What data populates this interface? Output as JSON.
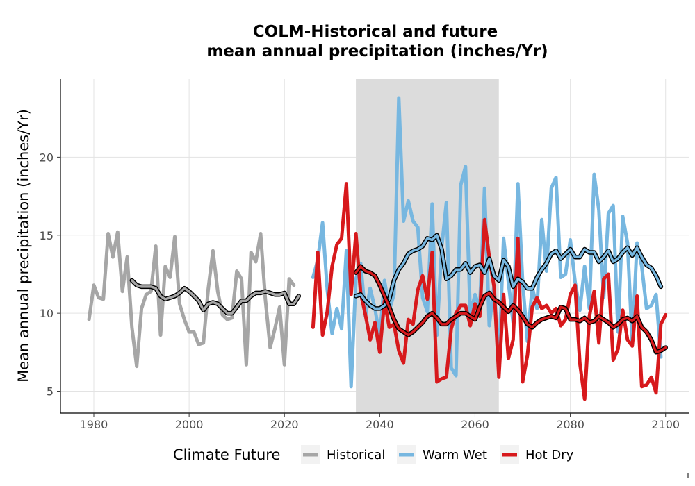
{
  "chart_data": {
    "type": "line",
    "title_line1": "COLM-Historical and future",
    "title_line2": "mean annual precipitation (inches/Yr)",
    "ylabel": "Mean annual precipitation (inches/Yr)",
    "xlabel": "",
    "xlim": [
      1973,
      2105
    ],
    "ylim": [
      3.6,
      25.0
    ],
    "x_ticks": [
      1980,
      2000,
      2020,
      2040,
      2060,
      2080,
      2100
    ],
    "y_ticks": [
      5,
      10,
      15,
      20
    ],
    "grid": true,
    "shaded_period": {
      "x_start": 2035,
      "x_end": 2065,
      "color": "#dcdcdc"
    },
    "legend": {
      "title": "Climate Future",
      "position": "bottom",
      "entries": [
        {
          "label": "Historical",
          "color": "#a6a6a6"
        },
        {
          "label": "Warm Wet",
          "color": "#77b7e0"
        },
        {
          "label": "Hot Dry",
          "color": "#d7191c"
        }
      ]
    },
    "series": [
      {
        "name": "Historical",
        "color": "#a6a6a6",
        "x_start": 1979,
        "values": [
          9.6,
          11.8,
          11.0,
          10.9,
          15.1,
          13.6,
          15.2,
          11.4,
          13.6,
          9.1,
          6.6,
          10.3,
          11.2,
          11.4,
          14.3,
          8.6,
          13.0,
          12.3,
          14.9,
          10.6,
          9.6,
          8.8,
          8.8,
          8.0,
          8.1,
          11.5,
          14.0,
          11.4,
          9.9,
          9.6,
          9.7,
          12.7,
          12.2,
          6.7,
          13.9,
          13.3,
          15.1,
          10.9,
          7.8,
          9.0,
          10.4,
          6.7,
          12.2,
          11.8
        ]
      },
      {
        "name": "Historical smoothed",
        "color": "#a6a6a6",
        "smooth": true,
        "x_start": 1988,
        "values": [
          12.1,
          11.8,
          11.7,
          11.7,
          11.7,
          11.6,
          11.1,
          10.9,
          11.0,
          11.1,
          11.3,
          11.6,
          11.4,
          11.1,
          10.8,
          10.2,
          10.6,
          10.7,
          10.6,
          10.3,
          10.0,
          10.0,
          10.4,
          10.8,
          10.8,
          11.1,
          11.3,
          11.3,
          11.4,
          11.3,
          11.2,
          11.2,
          11.3,
          10.6,
          10.6,
          11.1
        ]
      },
      {
        "name": "Warm Wet",
        "color": "#77b7e0",
        "x_start": 2026,
        "values": [
          12.3,
          13.4,
          15.8,
          11.5,
          8.7,
          10.3,
          9.0,
          14.0,
          5.3,
          12.2,
          13.2,
          9.8,
          11.6,
          10.3,
          8.5,
          12.1,
          10.2,
          11.2,
          23.8,
          15.9,
          17.2,
          15.9,
          15.5,
          11.0,
          10.1,
          17.0,
          8.6,
          14.2,
          17.1,
          6.5,
          6.0,
          18.2,
          19.4,
          9.9,
          11.2,
          10.3,
          18.0,
          9.2,
          11.8,
          6.7,
          14.8,
          12.0,
          9.4,
          18.3,
          12.0,
          8.2,
          11.7,
          10.3,
          16.0,
          12.7,
          18.0,
          18.7,
          12.3,
          12.5,
          14.7,
          12.0,
          10.2,
          13.0,
          10.3,
          18.9,
          16.6,
          11.0,
          16.4,
          16.9,
          8.8,
          16.2,
          14.5,
          8.1,
          14.5,
          13.0,
          10.3,
          10.5,
          11.2,
          7.2
        ]
      },
      {
        "name": "Warm Wet smoothed",
        "color": "#77b7e0",
        "smooth": true,
        "x_start": 2035,
        "values": [
          11.1,
          11.2,
          10.8,
          10.5,
          10.3,
          10.3,
          10.5,
          10.9,
          12.1,
          12.8,
          13.2,
          13.8,
          14.0,
          14.1,
          14.3,
          14.8,
          14.7,
          15.0,
          14.1,
          12.2,
          12.4,
          12.8,
          12.8,
          13.2,
          12.6,
          13.0,
          13.1,
          12.6,
          13.5,
          12.4,
          12.1,
          13.4,
          13.0,
          11.7,
          12.2,
          12.0,
          11.6,
          11.6,
          12.3,
          12.8,
          13.2,
          13.8,
          14.0,
          13.5,
          13.8,
          14.1,
          13.6,
          13.6,
          14.1,
          13.9,
          13.9,
          13.3,
          13.6,
          14.0,
          13.3,
          13.5,
          13.9,
          14.2,
          13.7,
          14.2,
          13.6,
          13.1,
          12.9,
          12.4,
          11.7
        ]
      },
      {
        "name": "Hot Dry",
        "color": "#d7191c",
        "x_start": 2026,
        "values": [
          9.1,
          13.9,
          8.6,
          10.1,
          13.0,
          14.4,
          14.8,
          18.3,
          11.2,
          15.1,
          11.3,
          9.9,
          8.3,
          9.4,
          7.5,
          10.8,
          9.1,
          9.3,
          7.6,
          6.8,
          9.6,
          9.3,
          11.5,
          12.4,
          10.9,
          13.9,
          5.6,
          5.8,
          5.9,
          9.0,
          10.0,
          10.5,
          10.5,
          9.2,
          10.6,
          9.8,
          16.0,
          13.6,
          11.7,
          5.9,
          11.2,
          7.1,
          8.3,
          14.8,
          5.6,
          7.3,
          10.4,
          11.0,
          10.3,
          10.5,
          10.0,
          10.3,
          9.2,
          9.6,
          11.2,
          11.8,
          6.8,
          4.5,
          9.8,
          11.4,
          8.1,
          12.2,
          12.5,
          7.0,
          7.7,
          10.2,
          8.3,
          7.9,
          11.1,
          5.3,
          5.4,
          5.9,
          4.9,
          9.3,
          9.9
        ]
      },
      {
        "name": "Hot Dry smoothed",
        "color": "#d7191c",
        "smooth": true,
        "x_start": 2035,
        "values": [
          12.6,
          13.0,
          12.7,
          12.6,
          12.4,
          11.8,
          11.1,
          10.4,
          9.6,
          9.0,
          8.8,
          8.6,
          8.8,
          9.1,
          9.4,
          9.8,
          10.0,
          9.7,
          9.3,
          9.3,
          9.6,
          9.8,
          10.0,
          10.0,
          9.8,
          9.6,
          10.4,
          11.1,
          11.3,
          10.9,
          10.7,
          10.4,
          10.1,
          10.5,
          10.2,
          9.8,
          9.3,
          9.1,
          9.4,
          9.6,
          9.7,
          9.8,
          9.7,
          10.4,
          10.3,
          9.6,
          9.6,
          9.5,
          9.7,
          9.4,
          9.5,
          9.8,
          9.6,
          9.4,
          9.1,
          9.3,
          9.6,
          9.7,
          9.5,
          9.8,
          9.1,
          8.8,
          8.3,
          7.5,
          7.6,
          7.8
        ]
      }
    ]
  }
}
